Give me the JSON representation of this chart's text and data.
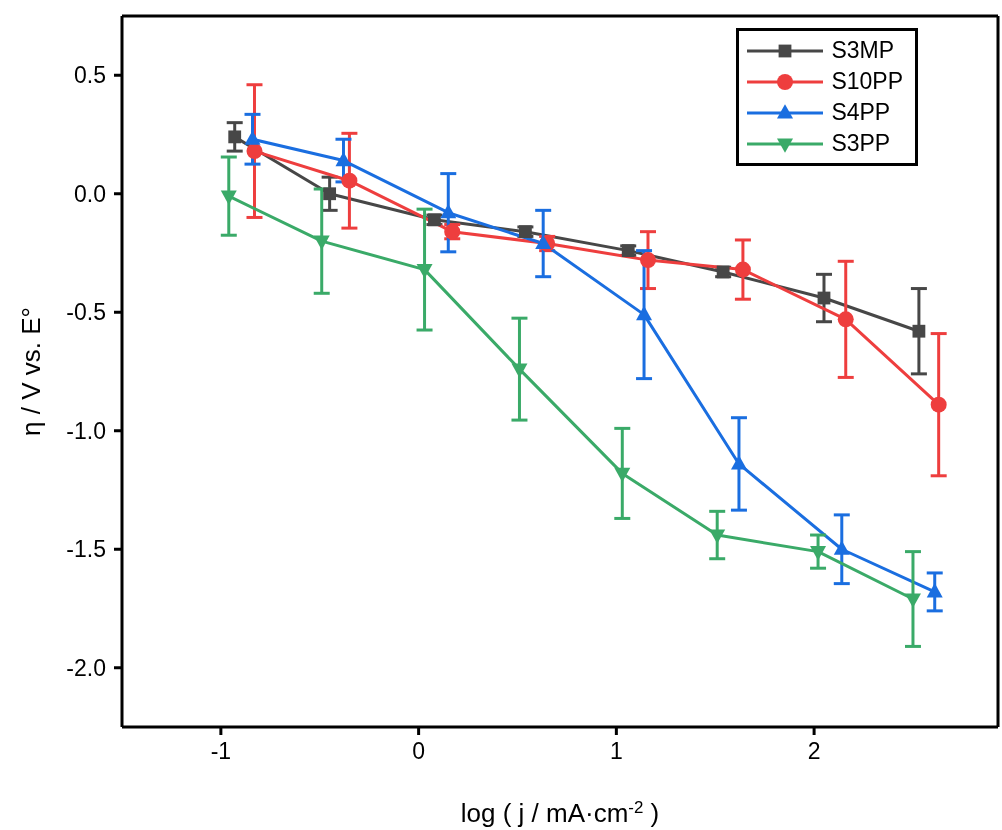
{
  "chart_data": {
    "type": "line",
    "xlabel": "log ( j / mA·cm$^{-2}$ )",
    "ylabel": "η / V vs. E°",
    "xlim": [
      -1.5,
      2.93
    ],
    "ylim": [
      -2.25,
      0.75
    ],
    "xticks": [
      -1,
      0,
      1,
      2
    ],
    "yticks": [
      0.5,
      {
        "value": 0,
        "label": "0.0"
      },
      -0.5,
      {
        "value": -1,
        "label": "-1.0"
      },
      -1.5,
      {
        "value": -2,
        "label": "-2.0"
      }
    ],
    "legend": "top right",
    "series": [
      {
        "name": "S3MP",
        "color": "#474747",
        "marker": "square",
        "x": [
          -0.93,
          -0.45,
          0.08,
          0.54,
          1.06,
          1.54,
          2.05,
          2.53
        ],
        "values": [
          0.24,
          0.0,
          -0.11,
          -0.16,
          -0.24,
          -0.33,
          -0.44,
          -0.58
        ],
        "errors": [
          0.06,
          0.07,
          0.02,
          0.02,
          0.02,
          0.02,
          0.1,
          0.18
        ]
      },
      {
        "name": "S10PP",
        "color": "#ee3e3e",
        "marker": "circle",
        "x": [
          -0.83,
          -0.35,
          0.17,
          0.65,
          1.16,
          1.64,
          2.16,
          2.63
        ],
        "values": [
          0.18,
          0.055,
          -0.16,
          -0.21,
          -0.28,
          -0.32,
          -0.53,
          -0.89
        ],
        "errors": [
          0.28,
          0.2,
          0.03,
          0.03,
          0.12,
          0.125,
          0.245,
          0.3
        ]
      },
      {
        "name": "S4PP",
        "color": "#1a6ee0",
        "marker": "triangle",
        "x": [
          -0.84,
          -0.38,
          0.15,
          0.63,
          1.14,
          1.62,
          2.14,
          2.61
        ],
        "values": [
          0.23,
          0.14,
          -0.08,
          -0.21,
          -0.51,
          -1.14,
          -1.5,
          -1.68
        ],
        "errors": [
          0.105,
          0.09,
          0.165,
          0.14,
          0.27,
          0.195,
          0.145,
          0.08
        ]
      },
      {
        "name": "S3PP",
        "color": "#3aaa68",
        "marker": "triangle-down",
        "x": [
          -0.96,
          -0.49,
          0.03,
          0.51,
          1.03,
          1.51,
          2.02,
          2.5
        ],
        "values": [
          -0.01,
          -0.2,
          -0.32,
          -0.74,
          -1.18,
          -1.44,
          -1.51,
          -1.71
        ],
        "errors": [
          0.165,
          0.22,
          0.255,
          0.215,
          0.19,
          0.1,
          0.07,
          0.2
        ]
      }
    ]
  }
}
